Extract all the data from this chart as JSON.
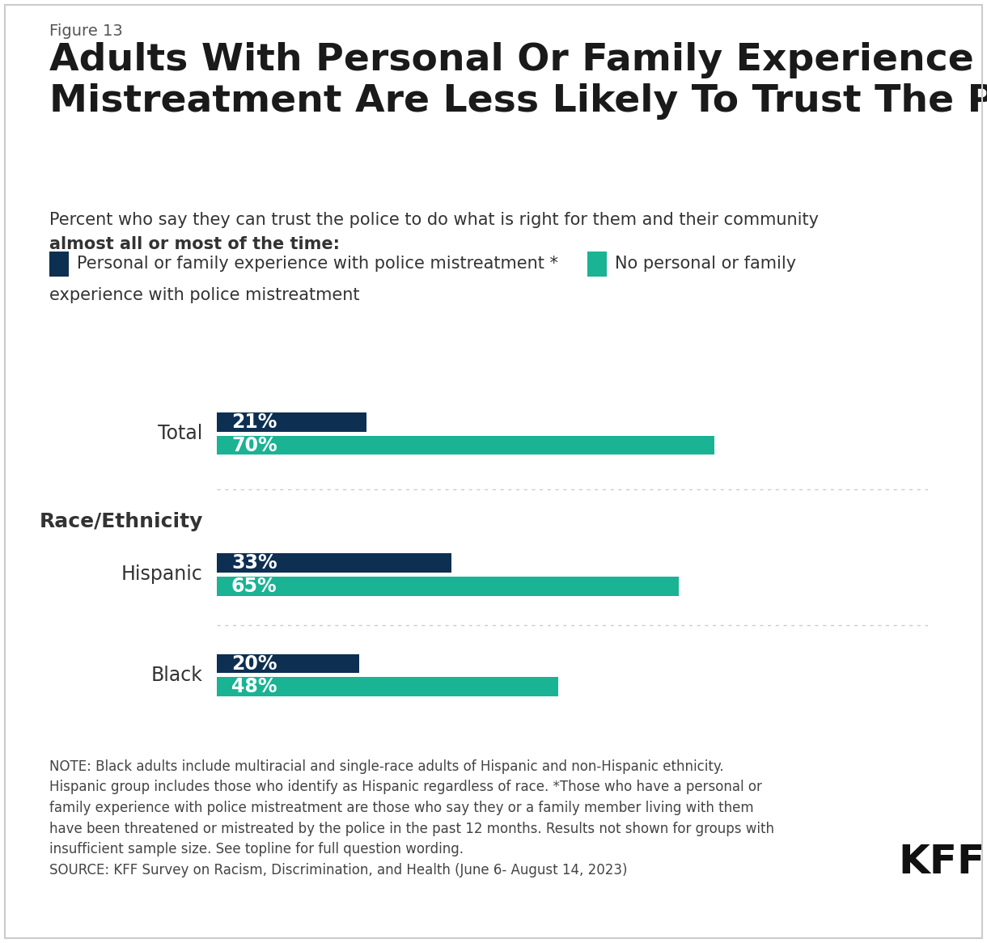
{
  "figure_label": "Figure 13",
  "title_line1": "Adults With Personal Or Family Experience Of Police",
  "title_line2": "Mistreatment Are Less Likely To Trust The Police",
  "subtitle_normal": "Percent who say they can trust the police to do what is right for them and their community",
  "subtitle_bold": "almost all or most of the time:",
  "legend_item1_label": "Personal or family experience with police mistreatment *",
  "legend_item2_label_line1": "No personal or family",
  "legend_item2_label_line2": "experience with police mistreatment",
  "categories": [
    "Total",
    "Hispanic",
    "Black"
  ],
  "section_label": "Race/Ethnicity",
  "values_mistreatment": [
    21,
    33,
    20
  ],
  "values_no_mistreatment": [
    70,
    65,
    48
  ],
  "color_mistreatment": "#0d2f52",
  "color_no_mistreatment": "#1ab394",
  "bar_height": 0.38,
  "xlim": [
    0,
    100
  ],
  "note_text": "NOTE: Black adults include multiracial and single-race adults of Hispanic and non-Hispanic ethnicity.\nHispanic group includes those who identify as Hispanic regardless of race. *Those who have a personal or\nfamily experience with police mistreatment are those who say they or a family member living with them\nhave been threatened or mistreated by the police in the past 12 months. Results not shown for groups with\ninsufficient sample size. See topline for full question wording.\nSOURCE: KFF Survey on Racism, Discrimination, and Health (June 6- August 14, 2023)",
  "background_color": "#ffffff",
  "text_color": "#333333",
  "bar_label_color": "#ffffff",
  "bar_label_fontsize": 17,
  "category_fontsize": 17,
  "note_fontsize": 12,
  "title_fontsize": 34,
  "figure_label_fontsize": 14,
  "subtitle_fontsize": 15,
  "section_fontsize": 18,
  "legend_fontsize": 15,
  "separator_color": "#cccccc",
  "border_color": "#cccccc"
}
